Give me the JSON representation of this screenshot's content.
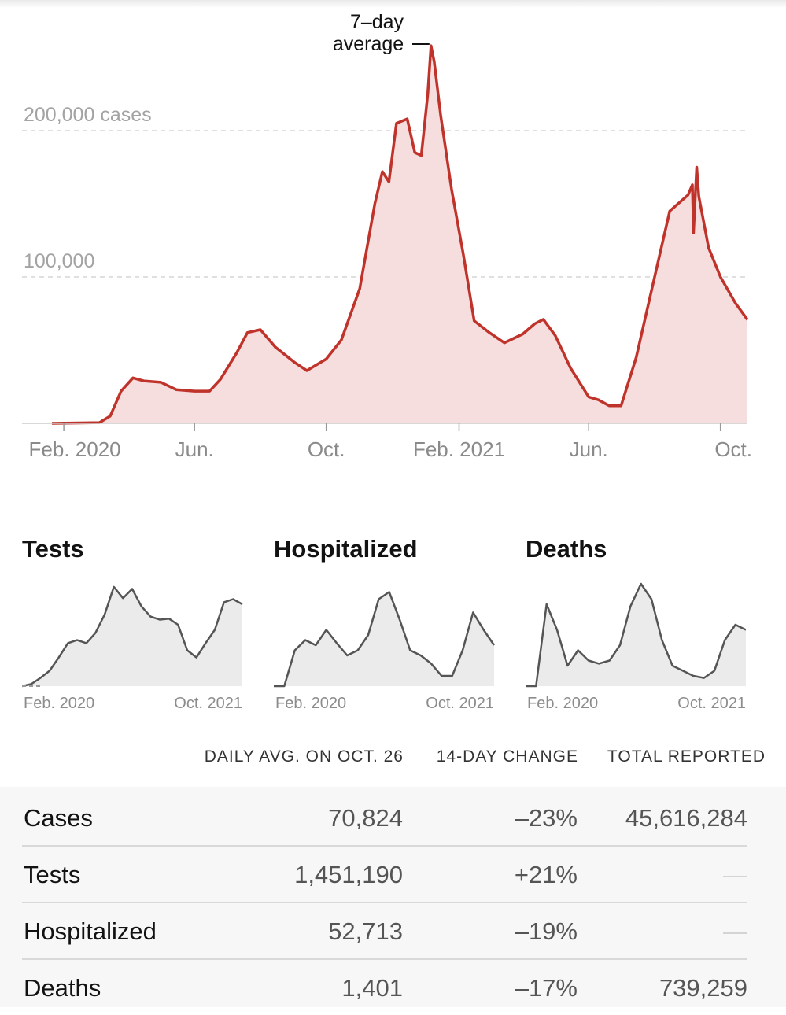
{
  "chart_data": [
    {
      "type": "area",
      "title": "",
      "y_unit_label": "cases",
      "annotation": "7–day average",
      "annotation_lines": [
        "7–day",
        "average"
      ],
      "ylim": [
        0,
        260000
      ],
      "y_ticks": [
        100000,
        200000
      ],
      "y_tick_labels": [
        "100,000",
        "200,000 cases"
      ],
      "x_ticks": [
        "Feb. 2020",
        "Jun.",
        "Oct.",
        "Feb. 2021",
        "Jun.",
        "Oct."
      ],
      "x_dates": [
        "2020-01-21",
        "2020-03-05",
        "2020-03-15",
        "2020-03-25",
        "2020-04-05",
        "2020-04-15",
        "2020-05-01",
        "2020-05-15",
        "2020-06-01",
        "2020-06-15",
        "2020-06-25",
        "2020-07-10",
        "2020-07-20",
        "2020-08-01",
        "2020-08-15",
        "2020-09-01",
        "2020-09-13",
        "2020-10-01",
        "2020-10-15",
        "2020-11-01",
        "2020-11-15",
        "2020-11-22",
        "2020-11-28",
        "2020-12-05",
        "2020-12-15",
        "2020-12-22",
        "2020-12-28",
        "2021-01-03",
        "2021-01-06",
        "2021-01-09",
        "2021-01-15",
        "2021-01-25",
        "2021-02-05",
        "2021-02-15",
        "2021-03-01",
        "2021-03-15",
        "2021-04-01",
        "2021-04-12",
        "2021-04-20",
        "2021-05-01",
        "2021-05-15",
        "2021-06-01",
        "2021-06-10",
        "2021-06-20",
        "2021-07-01",
        "2021-07-15",
        "2021-08-01",
        "2021-08-15",
        "2021-09-01",
        "2021-09-05",
        "2021-09-06",
        "2021-09-08",
        "2021-09-09",
        "2021-09-11",
        "2021-09-20",
        "2021-10-01",
        "2021-10-15",
        "2021-10-26"
      ],
      "series": [
        {
          "values": [
            0,
            500,
            5000,
            22000,
            31000,
            29000,
            28000,
            23000,
            22000,
            22000,
            30000,
            48000,
            62000,
            64000,
            52000,
            42000,
            36000,
            44000,
            57000,
            92000,
            150000,
            172000,
            165000,
            205000,
            208000,
            185000,
            183000,
            225000,
            258000,
            247000,
            210000,
            160000,
            115000,
            70000,
            62000,
            55000,
            61000,
            68000,
            71000,
            60000,
            38000,
            18000,
            16000,
            12000,
            12000,
            45000,
            100000,
            145000,
            156000,
            163000,
            130000,
            160000,
            175000,
            155000,
            120000,
            100000,
            82000,
            70824
          ]
        }
      ]
    },
    {
      "type": "area",
      "title": "Tests",
      "x_start_label": "Feb. 2020",
      "x_end_label": "Oct. 2021",
      "y_relative": [
        0,
        0.02,
        0.08,
        0.15,
        0.28,
        0.42,
        0.45,
        0.42,
        0.52,
        0.7,
        0.97,
        0.86,
        0.95,
        0.78,
        0.68,
        0.65,
        0.66,
        0.6,
        0.35,
        0.28,
        0.42,
        0.55,
        0.82,
        0.85,
        0.8
      ]
    },
    {
      "type": "area",
      "title": "Hospitalized",
      "x_start_label": "Feb. 2020",
      "x_end_label": "Oct. 2021",
      "y_relative": [
        0,
        0,
        0.35,
        0.45,
        0.4,
        0.55,
        0.42,
        0.3,
        0.35,
        0.5,
        0.85,
        0.92,
        0.65,
        0.35,
        0.3,
        0.22,
        0.1,
        0.1,
        0.35,
        0.72,
        0.55,
        0.4
      ]
    },
    {
      "type": "area",
      "title": "Deaths",
      "x_start_label": "Feb. 2020",
      "x_end_label": "Oct. 2021",
      "y_relative": [
        0,
        0,
        0.8,
        0.55,
        0.2,
        0.35,
        0.25,
        0.22,
        0.25,
        0.4,
        0.78,
        1.0,
        0.85,
        0.45,
        0.2,
        0.15,
        0.1,
        0.08,
        0.15,
        0.45,
        0.6,
        0.55
      ]
    }
  ],
  "table": {
    "headers": [
      "DAILY AVG. ON OCT. 26",
      "14-DAY CHANGE",
      "TOTAL REPORTED"
    ],
    "rows": [
      {
        "name": "Cases",
        "avg": "70,824",
        "change": "–23%",
        "total": "45,616,284"
      },
      {
        "name": "Tests",
        "avg": "1,451,190",
        "change": "+21%",
        "total": "—"
      },
      {
        "name": "Hospitalized",
        "avg": "52,713",
        "change": "–19%",
        "total": "—"
      },
      {
        "name": "Deaths",
        "avg": "1,401",
        "change": "–17%",
        "total": "739,259"
      }
    ]
  },
  "colors": {
    "cases_line": "#c0332b",
    "cases_fill": "#f6dede",
    "mini_line": "#555555",
    "mini_fill": "#ebebeb",
    "table_bg": "#f7f7f7"
  }
}
